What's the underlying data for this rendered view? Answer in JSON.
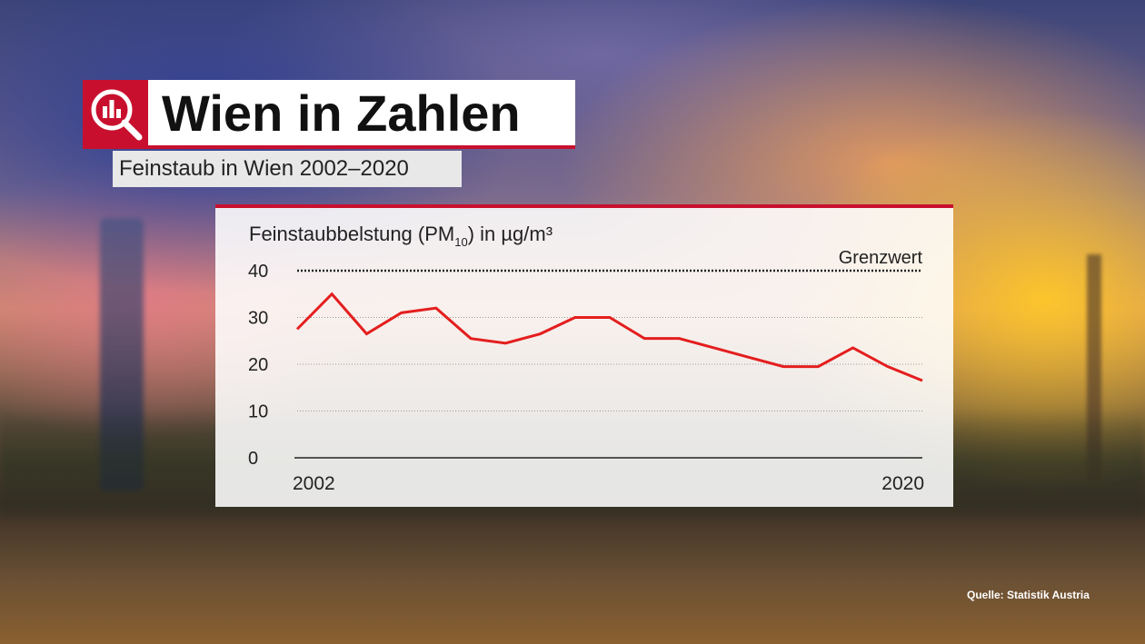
{
  "header": {
    "title": "Wien in Zahlen",
    "subtitle": "Feinstaub in Wien 2002–2020",
    "logo_icon": "magnifier-bar-chart-icon"
  },
  "colors": {
    "accent": "#c8102e",
    "line": "#e41e1e",
    "text": "#222222"
  },
  "source": "Quelle: Statistik Austria",
  "chart_data": {
    "type": "line",
    "ylabel_main": "Feinstaubbelstung (PM",
    "ylabel_sub": "10",
    "ylabel_end": ") in µg/m³",
    "ylim": [
      0,
      40
    ],
    "yticks": [
      "0",
      "10",
      "20",
      "30",
      "40"
    ],
    "xticks": [
      "2002",
      "2020"
    ],
    "x": [
      2002,
      2003,
      2004,
      2005,
      2006,
      2007,
      2008,
      2009,
      2010,
      2011,
      2012,
      2013,
      2014,
      2015,
      2016,
      2017,
      2018,
      2019,
      2020
    ],
    "series": [
      {
        "values": [
          27.5,
          35,
          26.5,
          31,
          32,
          25.5,
          24.5,
          26.5,
          30,
          30,
          25.5,
          25.5,
          23.5,
          21.5,
          19.5,
          19.5,
          23.5,
          19.5,
          16.5
        ]
      }
    ],
    "reference_line": {
      "value": 40,
      "label": "Grenzwert"
    },
    "grid": true
  }
}
